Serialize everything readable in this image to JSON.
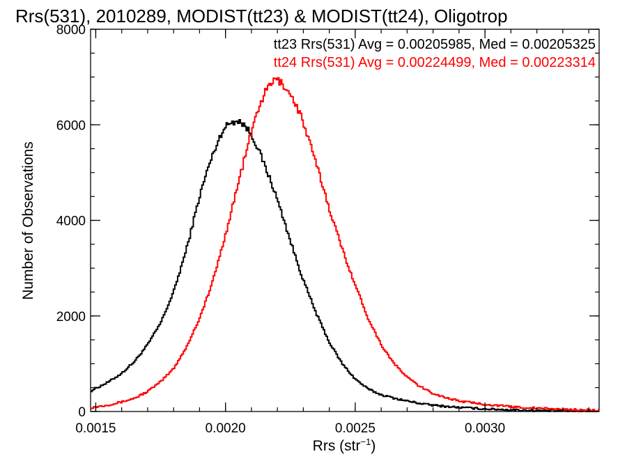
{
  "chart_data": {
    "type": "line",
    "title": "Rrs(531), 2010289, MODIST(tt23) & MODIST(tt24), Oligotrop",
    "xlabel": "Rrs (str",
    "xlabel_sup": "−1",
    "xlabel_end": ")",
    "ylabel": "Number of Observations",
    "xlim": [
      0.00148,
      0.00344
    ],
    "ylim": [
      0,
      8000
    ],
    "xticks": [
      {
        "value": 0.0015,
        "label": "0.0015"
      },
      {
        "value": 0.002,
        "label": "0.0020"
      },
      {
        "value": 0.0025,
        "label": "0.0025"
      },
      {
        "value": 0.003,
        "label": "0.0030"
      }
    ],
    "yticks": [
      {
        "value": 0,
        "label": "0"
      },
      {
        "value": 2000,
        "label": "2000"
      },
      {
        "value": 4000,
        "label": "4000"
      },
      {
        "value": 6000,
        "label": "6000"
      },
      {
        "value": 8000,
        "label": "8000"
      }
    ],
    "legend_placement": "top-right",
    "series": [
      {
        "name": "tt23",
        "legend": "tt23 Rrs(531) Avg = 0.00205985, Med = 0.00205325",
        "color": "#000000",
        "x": [
          0.00148,
          0.00155,
          0.0016,
          0.00165,
          0.0017,
          0.00175,
          0.0018,
          0.00185,
          0.0019,
          0.00193,
          0.00196,
          0.00199,
          0.00202,
          0.00205,
          0.00208,
          0.00211,
          0.00214,
          0.00218,
          0.00222,
          0.00226,
          0.0023,
          0.00235,
          0.0024,
          0.00245,
          0.0025,
          0.00255,
          0.0026,
          0.00265,
          0.0027,
          0.00275,
          0.0028,
          0.0029,
          0.003,
          0.0031,
          0.0032,
          0.0033,
          0.00344
        ],
        "y": [
          430,
          620,
          800,
          1050,
          1400,
          1850,
          2500,
          3400,
          4500,
          5050,
          5500,
          5900,
          6050,
          6100,
          5950,
          5700,
          5300,
          4750,
          4100,
          3400,
          2750,
          2050,
          1450,
          1000,
          680,
          470,
          350,
          280,
          220,
          170,
          130,
          85,
          55,
          35,
          20,
          12,
          5
        ]
      },
      {
        "name": "tt24",
        "legend": "tt24 Rrs(531) Avg = 0.00224499, Med = 0.00223314",
        "color": "#ff0000",
        "x": [
          0.00148,
          0.00155,
          0.0016,
          0.00165,
          0.0017,
          0.00175,
          0.0018,
          0.00185,
          0.0019,
          0.00195,
          0.002,
          0.00205,
          0.0021,
          0.00213,
          0.00216,
          0.00219,
          0.00221,
          0.00223,
          0.00226,
          0.00229,
          0.00232,
          0.00236,
          0.0024,
          0.00245,
          0.0025,
          0.00255,
          0.0026,
          0.00265,
          0.0027,
          0.00275,
          0.0028,
          0.00285,
          0.0029,
          0.003,
          0.0031,
          0.0032,
          0.0033,
          0.00344
        ],
        "y": [
          80,
          140,
          200,
          280,
          420,
          620,
          900,
          1350,
          1950,
          2700,
          3700,
          4800,
          5850,
          6400,
          6750,
          6950,
          6900,
          6800,
          6550,
          6200,
          5700,
          5000,
          4250,
          3400,
          2650,
          1950,
          1400,
          1000,
          720,
          520,
          380,
          290,
          220,
          150,
          100,
          70,
          45,
          25
        ]
      }
    ]
  }
}
